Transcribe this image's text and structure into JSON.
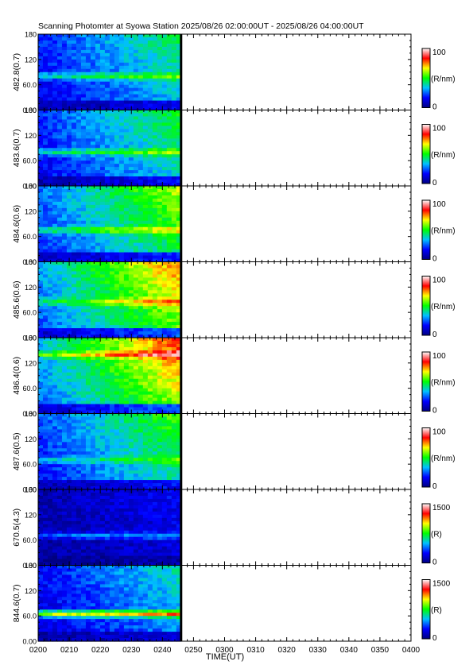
{
  "chart_data": {
    "type": "heatmap",
    "title": "Scanning Photomter at Syowa Station  2025/08/26 02:00:00UT - 2025/08/26 04:00:00UT",
    "xlabel": "TIME(UT)",
    "x_tick_labels": [
      "0200",
      "0210",
      "0220",
      "0230",
      "0240",
      "0250",
      "0300",
      "0310",
      "0320",
      "0330",
      "0340",
      "0350",
      "0400"
    ],
    "x_range_minutes_after_0200": [
      0,
      120
    ],
    "data_end_minutes_after_0200": 46,
    "y_tick_labels": [
      "0.00",
      "60.0",
      "120",
      "180"
    ],
    "y_range": [
      0,
      180
    ],
    "colormap": [
      "#000080",
      "#0000ff",
      "#00c0ff",
      "#00ff00",
      "#ffff00",
      "#ff0000",
      "#ffffff"
    ],
    "panels": [
      {
        "ylabel": "482.8(0.7)",
        "cbar_max": "100",
        "cbar_min": "0",
        "cbar_unit": "(R/nm)",
        "intensity": 0.35,
        "features": [
          {
            "elev": 80,
            "gain": 0.25
          }
        ]
      },
      {
        "ylabel": "483.6(0.7)",
        "cbar_max": "100",
        "cbar_min": "0",
        "cbar_unit": "(R/nm)",
        "intensity": 0.38,
        "features": [
          {
            "elev": 80,
            "gain": 0.25
          }
        ]
      },
      {
        "ylabel": "484.6(0.6)",
        "cbar_max": "100",
        "cbar_min": "0",
        "cbar_unit": "(R/nm)",
        "intensity": 0.48,
        "features": [
          {
            "elev": 75,
            "gain": 0.25
          }
        ]
      },
      {
        "ylabel": "485.6(0.6)",
        "cbar_max": "100",
        "cbar_min": "0",
        "cbar_unit": "(R/nm)",
        "intensity": 0.58,
        "features": [
          {
            "elev": 85,
            "gain": 0.2
          }
        ]
      },
      {
        "ylabel": "486.4(0.6)",
        "cbar_max": "100",
        "cbar_min": "0",
        "cbar_unit": "(R/nm)",
        "intensity": 0.62,
        "features": [
          {
            "elev": 140,
            "gain": 0.25
          }
        ]
      },
      {
        "ylabel": "487.6(0.5)",
        "cbar_max": "100",
        "cbar_min": "0",
        "cbar_unit": "(R/nm)",
        "intensity": 0.42,
        "features": [
          {
            "elev": 70,
            "gain": 0.15
          }
        ]
      },
      {
        "ylabel": "670.5(4.3)",
        "cbar_max": "1500",
        "cbar_min": "0",
        "cbar_unit": "(R)",
        "intensity": 0.12,
        "features": [
          {
            "elev": 70,
            "gain": 0.22
          }
        ]
      },
      {
        "ylabel": "844.6(0.7)",
        "cbar_max": "1500",
        "cbar_min": "0",
        "cbar_unit": "(R)",
        "intensity": 0.3,
        "features": [
          {
            "elev": 65,
            "gain": 0.55
          }
        ]
      }
    ]
  }
}
